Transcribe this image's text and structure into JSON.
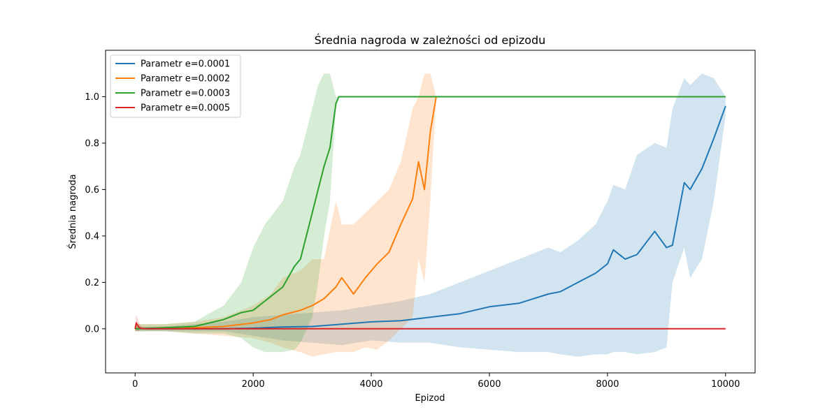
{
  "chart_data": {
    "type": "line",
    "title": "Średnia nagroda w zależności od epizodu",
    "xlabel": "Epizod",
    "ylabel": "Średnia nagroda",
    "xlim": [
      -500,
      10500
    ],
    "ylim": [
      -0.19,
      1.2
    ],
    "xticks": [
      0,
      2000,
      4000,
      6000,
      8000,
      10000
    ],
    "xtick_labels": [
      "0",
      "2000",
      "4000",
      "6000",
      "8000",
      "10000"
    ],
    "yticks": [
      0.0,
      0.2,
      0.4,
      0.6,
      0.8,
      1.0
    ],
    "ytick_labels": [
      "0.0",
      "0.2",
      "0.4",
      "0.6",
      "0.8",
      "1.0"
    ],
    "legend_position": "top-left",
    "grid": false,
    "series": [
      {
        "name": "Parametr e=0.0001",
        "color": "#1f77b4",
        "x": [
          0,
          500,
          1000,
          1500,
          2000,
          2500,
          3000,
          3500,
          4000,
          4500,
          5000,
          5500,
          6000,
          6500,
          7000,
          7200,
          7500,
          7800,
          8000,
          8100,
          8300,
          8500,
          8800,
          9000,
          9100,
          9300,
          9400,
          9600,
          9800,
          10000
        ],
        "values": [
          0.0,
          0.0,
          0.0,
          0.0,
          0.003,
          0.008,
          0.01,
          0.02,
          0.03,
          0.035,
          0.05,
          0.065,
          0.095,
          0.11,
          0.15,
          0.16,
          0.2,
          0.24,
          0.28,
          0.34,
          0.3,
          0.32,
          0.42,
          0.35,
          0.36,
          0.63,
          0.6,
          0.69,
          0.82,
          0.96
        ],
        "band_upper": [
          0.01,
          0.01,
          0.02,
          0.03,
          0.05,
          0.06,
          0.07,
          0.08,
          0.1,
          0.12,
          0.15,
          0.2,
          0.25,
          0.3,
          0.35,
          0.33,
          0.38,
          0.45,
          0.55,
          0.62,
          0.6,
          0.75,
          0.8,
          0.78,
          0.95,
          1.08,
          1.05,
          1.1,
          1.08,
          1.0
        ],
        "band_lower": [
          -0.01,
          -0.01,
          -0.01,
          -0.01,
          -0.03,
          -0.05,
          -0.06,
          -0.07,
          -0.05,
          -0.06,
          -0.06,
          -0.08,
          -0.09,
          -0.1,
          -0.1,
          -0.11,
          -0.12,
          -0.11,
          -0.11,
          -0.1,
          -0.1,
          -0.11,
          -0.1,
          -0.08,
          0.2,
          0.35,
          0.22,
          0.3,
          0.55,
          0.92
        ]
      },
      {
        "name": "Parametr e=0.0002",
        "color": "#ff7f0e",
        "x": [
          0,
          500,
          1000,
          1500,
          2000,
          2300,
          2500,
          2800,
          3000,
          3200,
          3400,
          3500,
          3700,
          3900,
          4100,
          4300,
          4500,
          4700,
          4800,
          4900,
          5000,
          5100
        ],
        "values": [
          0.0,
          0.002,
          0.005,
          0.01,
          0.025,
          0.04,
          0.06,
          0.08,
          0.1,
          0.13,
          0.18,
          0.22,
          0.15,
          0.22,
          0.28,
          0.33,
          0.45,
          0.56,
          0.72,
          0.6,
          0.85,
          1.0
        ],
        "band_upper": [
          0.02,
          0.02,
          0.03,
          0.05,
          0.1,
          0.15,
          0.22,
          0.25,
          0.3,
          0.3,
          0.55,
          0.45,
          0.45,
          0.5,
          0.55,
          0.6,
          0.72,
          0.95,
          1.0,
          1.1,
          1.1,
          1.0
        ],
        "band_lower": [
          -0.01,
          -0.01,
          -0.02,
          -0.03,
          -0.04,
          -0.06,
          -0.08,
          -0.1,
          -0.12,
          -0.11,
          -0.1,
          -0.1,
          -0.1,
          -0.08,
          -0.09,
          -0.05,
          0.0,
          0.05,
          0.3,
          0.2,
          0.55,
          1.0
        ]
      },
      {
        "name": "Parametr e=0.0003",
        "color": "#2ca02c",
        "x": [
          0,
          500,
          1000,
          1500,
          1800,
          2000,
          2200,
          2500,
          2700,
          2800,
          3000,
          3100,
          3200,
          3300,
          3400,
          3450,
          3500,
          4000,
          5000,
          6000,
          7000,
          8000,
          9000,
          10000
        ],
        "values": [
          0.0,
          0.005,
          0.01,
          0.04,
          0.07,
          0.08,
          0.12,
          0.18,
          0.27,
          0.3,
          0.5,
          0.6,
          0.7,
          0.78,
          0.97,
          1.0,
          1.0,
          1.0,
          1.0,
          1.0,
          1.0,
          1.0,
          1.0,
          1.0
        ],
        "band_upper": [
          0.02,
          0.02,
          0.03,
          0.1,
          0.2,
          0.35,
          0.45,
          0.55,
          0.7,
          0.75,
          0.95,
          1.05,
          1.1,
          1.1,
          1.0,
          1.0,
          1.0,
          1.0,
          1.0,
          1.0,
          1.0,
          1.0,
          1.0,
          1.0
        ],
        "band_lower": [
          -0.01,
          -0.01,
          -0.02,
          -0.02,
          -0.04,
          -0.08,
          -0.1,
          -0.1,
          -0.09,
          -0.06,
          0.05,
          0.2,
          0.4,
          0.55,
          0.95,
          1.0,
          1.0,
          1.0,
          1.0,
          1.0,
          1.0,
          1.0,
          1.0,
          1.0
        ]
      },
      {
        "name": "Parametr e=0.0005",
        "color": "#d62728",
        "x": [
          0,
          20,
          60,
          100,
          200,
          500,
          1000,
          2000,
          5000,
          10000
        ],
        "values": [
          0.0,
          0.025,
          0.008,
          0.002,
          0.0,
          0.0,
          0.0,
          0.0,
          0.0,
          0.0
        ],
        "band_upper": [
          0.0,
          0.06,
          0.03,
          0.01,
          0.0,
          0.0,
          0.0,
          0.0,
          0.0,
          0.0
        ],
        "band_lower": [
          0.0,
          -0.01,
          -0.01,
          0.0,
          0.0,
          0.0,
          0.0,
          0.0,
          0.0,
          0.0
        ]
      }
    ]
  }
}
